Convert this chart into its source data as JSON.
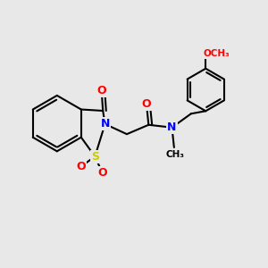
{
  "bg_color": "#e8e8e8",
  "bond_color": "#000000",
  "atom_colors": {
    "N": "#0000ff",
    "O": "#ff0000",
    "S": "#cccc00",
    "C": "#000000"
  },
  "bond_width": 1.5,
  "font_size_atoms": 9,
  "font_size_small": 7.5,
  "xlim": [
    0,
    10
  ],
  "ylim": [
    0,
    10
  ]
}
